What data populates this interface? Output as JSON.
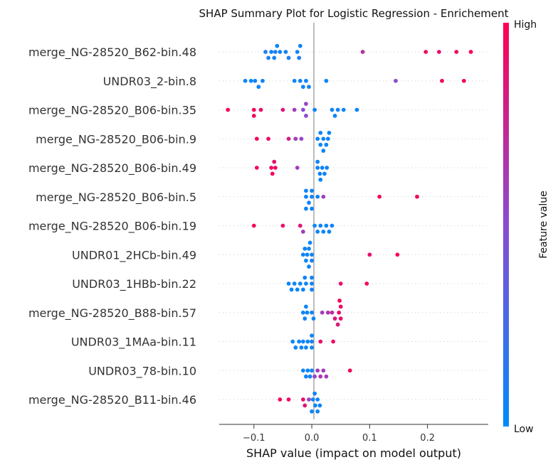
{
  "chart_data": {
    "type": "scatter",
    "title": "SHAP Summary Plot for Logistic Regression - Enrichement",
    "xlabel": "SHAP value (impact on model output)",
    "xlim": [
      -0.16,
      0.305
    ],
    "xticks": [
      -0.1,
      0.0,
      0.1,
      0.2
    ],
    "xtick_labels": [
      "−0.1",
      "0.0",
      "0.1",
      "0.2"
    ],
    "colorbar": {
      "label": "Feature value",
      "high_label": "High",
      "low_label": "Low",
      "low_color": "#008bfb",
      "mid_color": "#8a4dd1",
      "high_color": "#ff0052"
    },
    "features": [
      {
        "name": "merge_NG-28520_B62-bin.48",
        "points": [
          [
            -0.08,
            0.1
          ],
          [
            -0.075,
            0.1
          ],
          [
            -0.07,
            0.05
          ],
          [
            -0.065,
            0.08
          ],
          [
            -0.063,
            0.1
          ],
          [
            -0.06,
            0.05
          ],
          [
            -0.055,
            0.05
          ],
          [
            -0.045,
            0.05
          ],
          [
            -0.04,
            0.1
          ],
          [
            -0.025,
            0.05
          ],
          [
            -0.022,
            0.1
          ],
          [
            -0.02,
            0.05
          ],
          [
            0.088,
            0.7
          ],
          [
            0.197,
            0.95
          ],
          [
            0.22,
            0.9
          ],
          [
            0.25,
            0.95
          ],
          [
            0.275,
            1.0
          ]
        ]
      },
      {
        "name": "UNDR03_2-bin.8",
        "points": [
          [
            -0.115,
            0.05
          ],
          [
            -0.105,
            0.05
          ],
          [
            -0.098,
            0.05
          ],
          [
            -0.092,
            0.05
          ],
          [
            -0.085,
            0.05
          ],
          [
            -0.03,
            0.05
          ],
          [
            -0.02,
            0.05
          ],
          [
            -0.015,
            0.05
          ],
          [
            -0.01,
            0.05
          ],
          [
            -0.005,
            0.05
          ],
          [
            0.025,
            0.05
          ],
          [
            0.145,
            0.5
          ],
          [
            0.225,
            0.95
          ],
          [
            0.263,
            0.95
          ]
        ]
      },
      {
        "name": "merge_NG-28520_B06-bin.35",
        "points": [
          [
            -0.145,
            1.0
          ],
          [
            -0.1,
            0.95
          ],
          [
            -0.1,
            0.95
          ],
          [
            -0.088,
            0.9
          ],
          [
            -0.05,
            0.85
          ],
          [
            -0.03,
            0.6
          ],
          [
            -0.015,
            0.5
          ],
          [
            -0.01,
            0.5
          ],
          [
            -0.01,
            0.55
          ],
          [
            0.005,
            0.05
          ],
          [
            0.035,
            0.05
          ],
          [
            0.04,
            0.05
          ],
          [
            0.045,
            0.05
          ],
          [
            0.055,
            0.05
          ],
          [
            0.078,
            0.05
          ]
        ]
      },
      {
        "name": "merge_NG-28520_B06-bin.9",
        "points": [
          [
            -0.095,
            0.95
          ],
          [
            -0.075,
            0.9
          ],
          [
            -0.04,
            0.8
          ],
          [
            -0.028,
            0.6
          ],
          [
            -0.018,
            0.55
          ],
          [
            0.01,
            0.05
          ],
          [
            0.015,
            0.05
          ],
          [
            0.02,
            0.05
          ],
          [
            0.025,
            0.05
          ],
          [
            0.015,
            0.05
          ],
          [
            0.02,
            0.05
          ],
          [
            0.028,
            0.05
          ],
          [
            0.03,
            0.05
          ]
        ]
      },
      {
        "name": "merge_NG-28520_B06-bin.49",
        "points": [
          [
            -0.095,
            0.95
          ],
          [
            -0.07,
            0.9
          ],
          [
            -0.068,
            0.95
          ],
          [
            -0.065,
            0.9
          ],
          [
            -0.063,
            0.95
          ],
          [
            -0.025,
            0.6
          ],
          [
            0.01,
            0.05
          ],
          [
            0.014,
            0.05
          ],
          [
            0.018,
            0.05
          ],
          [
            0.01,
            0.05
          ],
          [
            0.015,
            0.05
          ],
          [
            0.022,
            0.05
          ],
          [
            0.026,
            0.05
          ]
        ]
      },
      {
        "name": "merge_NG-28520_B06-bin.5",
        "points": [
          [
            -0.01,
            0.05
          ],
          [
            -0.005,
            0.05
          ],
          [
            0.0,
            0.05
          ],
          [
            -0.01,
            0.05
          ],
          [
            0.0,
            0.05
          ],
          [
            -0.01,
            0.05
          ],
          [
            0.0,
            0.05
          ],
          [
            0.01,
            0.05
          ],
          [
            0.02,
            0.6
          ],
          [
            0.117,
            0.95
          ],
          [
            0.182,
            0.95
          ]
        ]
      },
      {
        "name": "merge_NG-28520_B06-bin.19",
        "points": [
          [
            -0.1,
            0.95
          ],
          [
            -0.05,
            0.9
          ],
          [
            -0.02,
            0.85
          ],
          [
            -0.015,
            0.6
          ],
          [
            0.005,
            0.05
          ],
          [
            0.01,
            0.05
          ],
          [
            0.015,
            0.05
          ],
          [
            0.02,
            0.05
          ],
          [
            0.025,
            0.05
          ],
          [
            0.03,
            0.05
          ],
          [
            0.035,
            0.05
          ]
        ]
      },
      {
        "name": "UNDR01_2HCb-bin.49",
        "points": [
          [
            -0.015,
            0.05
          ],
          [
            -0.01,
            0.05
          ],
          [
            -0.008,
            0.05
          ],
          [
            -0.005,
            0.05
          ],
          [
            0.0,
            0.05
          ],
          [
            -0.012,
            0.05
          ],
          [
            -0.005,
            0.05
          ],
          [
            0.0,
            0.05
          ],
          [
            -0.003,
            0.05
          ],
          [
            0.1,
            0.9
          ],
          [
            0.148,
            0.95
          ]
        ]
      },
      {
        "name": "UNDR03_1HBb-bin.22",
        "points": [
          [
            -0.04,
            0.05
          ],
          [
            -0.035,
            0.05
          ],
          [
            -0.03,
            0.05
          ],
          [
            -0.025,
            0.05
          ],
          [
            -0.02,
            0.05
          ],
          [
            -0.015,
            0.05
          ],
          [
            0.0,
            0.05
          ],
          [
            -0.01,
            0.05
          ],
          [
            0.0,
            0.05
          ],
          [
            0.0,
            0.05
          ],
          [
            -0.012,
            0.05
          ],
          [
            0.05,
            0.9
          ],
          [
            0.095,
            0.95
          ]
        ]
      },
      {
        "name": "merge_NG-28520_B88-bin.57",
        "points": [
          [
            -0.015,
            0.05
          ],
          [
            -0.012,
            0.05
          ],
          [
            -0.008,
            0.05
          ],
          [
            -0.01,
            0.05
          ],
          [
            0.0,
            0.05
          ],
          [
            0.003,
            0.05
          ],
          [
            0.018,
            0.6
          ],
          [
            0.028,
            0.65
          ],
          [
            0.035,
            0.7
          ],
          [
            0.04,
            0.85
          ],
          [
            0.047,
            0.9
          ],
          [
            0.05,
            0.9
          ],
          [
            0.05,
            0.95
          ],
          [
            0.045,
            0.85
          ],
          [
            0.048,
            0.95
          ]
        ]
      },
      {
        "name": "UNDR03_1MAa-bin.11",
        "points": [
          [
            -0.033,
            0.05
          ],
          [
            -0.028,
            0.05
          ],
          [
            -0.022,
            0.05
          ],
          [
            -0.018,
            0.05
          ],
          [
            -0.015,
            0.05
          ],
          [
            -0.01,
            0.05
          ],
          [
            -0.007,
            0.05
          ],
          [
            0.0,
            0.05
          ],
          [
            0.0,
            0.05
          ],
          [
            0.0,
            0.05
          ],
          [
            0.015,
            0.9
          ],
          [
            0.037,
            0.95
          ]
        ]
      },
      {
        "name": "UNDR03_78-bin.10",
        "points": [
          [
            -0.015,
            0.05
          ],
          [
            -0.01,
            0.05
          ],
          [
            -0.007,
            0.05
          ],
          [
            -0.003,
            0.05
          ],
          [
            0.0,
            0.05
          ],
          [
            0.005,
            0.55
          ],
          [
            0.01,
            0.6
          ],
          [
            0.015,
            0.65
          ],
          [
            0.02,
            0.6
          ],
          [
            0.025,
            0.6
          ],
          [
            0.066,
            0.95
          ]
        ]
      },
      {
        "name": "merge_NG-28520_B11-bin.46",
        "points": [
          [
            -0.055,
            0.95
          ],
          [
            -0.04,
            0.95
          ],
          [
            -0.015,
            0.9
          ],
          [
            -0.012,
            0.85
          ],
          [
            -0.005,
            0.6
          ],
          [
            0.002,
            0.05
          ],
          [
            0.006,
            0.05
          ],
          [
            0.01,
            0.05
          ],
          [
            0.014,
            0.05
          ],
          [
            0.005,
            0.05
          ],
          [
            0.01,
            0.05
          ],
          [
            0.0,
            0.05
          ]
        ]
      }
    ]
  }
}
